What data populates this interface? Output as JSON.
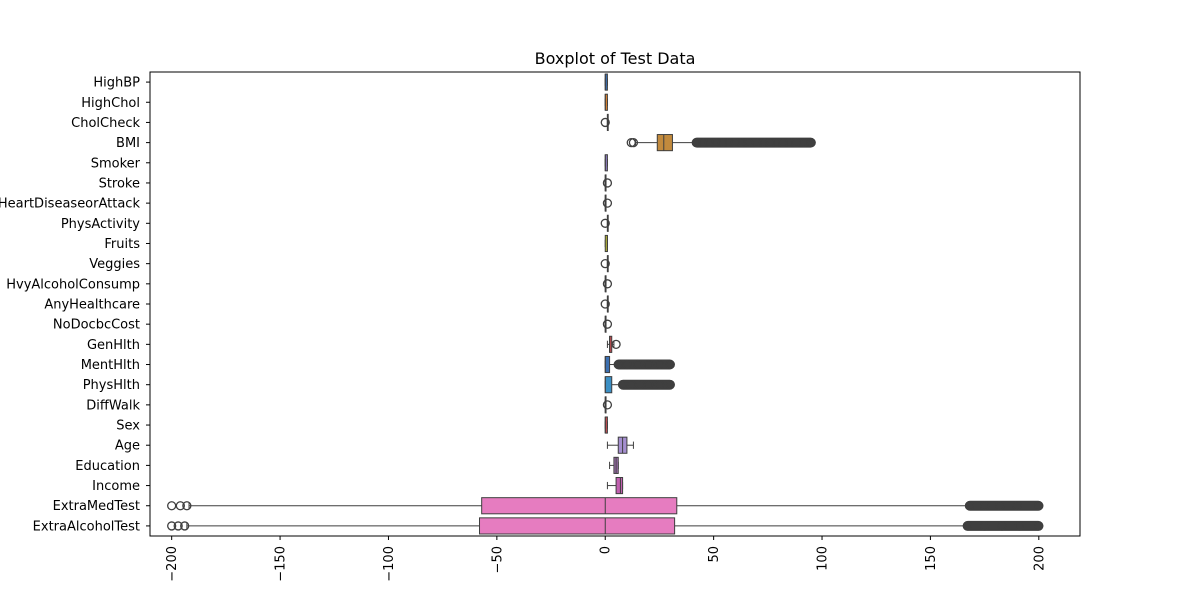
{
  "chart_data": {
    "type": "boxplot",
    "title": "Boxplot of Test Data",
    "orientation": "horizontal",
    "xlim": [
      -210,
      219
    ],
    "xticks": [
      -200,
      -150,
      -100,
      -50,
      0,
      50,
      100,
      150,
      200
    ],
    "xtick_labels": [
      "−200",
      "−150",
      "−100",
      "−50",
      "0",
      "50",
      "100",
      "150",
      "200"
    ],
    "xtick_rotation": 90,
    "grid": false,
    "series": [
      {
        "name": "HighBP",
        "color": "#3b6fb0",
        "min": 0,
        "q1": 0,
        "median": 0,
        "q3": 1,
        "max": 1,
        "outliers": []
      },
      {
        "name": "HighChol",
        "color": "#e3852f",
        "min": 0,
        "q1": 0,
        "median": 0,
        "q3": 1,
        "max": 1,
        "outliers": []
      },
      {
        "name": "CholCheck",
        "color": "#3da13d",
        "min": 1,
        "q1": 1,
        "median": 1,
        "q3": 1,
        "max": 1,
        "outliers": [
          0
        ]
      },
      {
        "name": "BMI",
        "color": "#c28a3d",
        "min": 14,
        "q1": 24,
        "median": 27,
        "q3": 31,
        "max": 41,
        "outliers": [
          12,
          13,
          42,
          45,
          48,
          51,
          54,
          57,
          60,
          63,
          66,
          70,
          73,
          76,
          79,
          82,
          85,
          88,
          92,
          95
        ]
      },
      {
        "name": "Smoker",
        "color": "#8c7bbd",
        "min": 0,
        "q1": 0,
        "median": 0,
        "q3": 1,
        "max": 1,
        "outliers": []
      },
      {
        "name": "Stroke",
        "color": "#8d5a4b",
        "min": 0,
        "q1": 0,
        "median": 0,
        "q3": 0,
        "max": 0,
        "outliers": [
          1
        ]
      },
      {
        "name": "HeartDiseaseorAttack",
        "color": "#d67bc0",
        "min": 0,
        "q1": 0,
        "median": 0,
        "q3": 0,
        "max": 0,
        "outliers": [
          1
        ]
      },
      {
        "name": "PhysActivity",
        "color": "#8c8c8c",
        "min": 1,
        "q1": 1,
        "median": 1,
        "q3": 1,
        "max": 1,
        "outliers": [
          0
        ]
      },
      {
        "name": "Fruits",
        "color": "#b8b83a",
        "min": 0,
        "q1": 0,
        "median": 1,
        "q3": 1,
        "max": 1,
        "outliers": []
      },
      {
        "name": "Veggies",
        "color": "#46b6c9",
        "min": 1,
        "q1": 1,
        "median": 1,
        "q3": 1,
        "max": 1,
        "outliers": [
          0
        ]
      },
      {
        "name": "HvyAlcoholConsump",
        "color": "#3b6fb0",
        "min": 0,
        "q1": 0,
        "median": 0,
        "q3": 0,
        "max": 0,
        "outliers": [
          1
        ]
      },
      {
        "name": "AnyHealthcare",
        "color": "#e3852f",
        "min": 1,
        "q1": 1,
        "median": 1,
        "q3": 1,
        "max": 1,
        "outliers": [
          0
        ]
      },
      {
        "name": "NoDocbcCost",
        "color": "#3da13d",
        "min": 0,
        "q1": 0,
        "median": 0,
        "q3": 0,
        "max": 0,
        "outliers": [
          1
        ]
      },
      {
        "name": "GenHlth",
        "color": "#c44e52",
        "min": 1,
        "q1": 2,
        "median": 2,
        "q3": 3,
        "max": 4,
        "outliers": [
          5
        ]
      },
      {
        "name": "MentHlth",
        "color": "#3b6fb0",
        "min": 0,
        "q1": 0,
        "median": 0,
        "q3": 2,
        "max": 5,
        "outliers": [
          6,
          10,
          15,
          20,
          25,
          30
        ]
      },
      {
        "name": "PhysHlth",
        "color": "#3b8fc4",
        "min": 0,
        "q1": 0,
        "median": 0,
        "q3": 3,
        "max": 7,
        "outliers": [
          8,
          12,
          16,
          20,
          25,
          30
        ]
      },
      {
        "name": "DiffWalk",
        "color": "#3da13d",
        "min": 0,
        "q1": 0,
        "median": 0,
        "q3": 0,
        "max": 0,
        "outliers": [
          1
        ]
      },
      {
        "name": "Sex",
        "color": "#c44e52",
        "min": 0,
        "q1": 0,
        "median": 0,
        "q3": 1,
        "max": 1,
        "outliers": []
      },
      {
        "name": "Age",
        "color": "#a58fd0",
        "min": 1,
        "q1": 6,
        "median": 8,
        "q3": 10,
        "max": 13,
        "outliers": []
      },
      {
        "name": "Education",
        "color": "#a070b0",
        "min": 2,
        "q1": 4,
        "median": 5,
        "q3": 6,
        "max": 6,
        "outliers": []
      },
      {
        "name": "Income",
        "color": "#c25fb0",
        "min": 1,
        "q1": 5,
        "median": 7,
        "q3": 8,
        "max": 8,
        "outliers": []
      },
      {
        "name": "ExtraMedTest",
        "color": "#e67cc0",
        "min": -192,
        "q1": -57,
        "median": 0,
        "q3": 33,
        "max": 167,
        "outliers": [
          -200,
          -196,
          -193,
          168,
          175,
          182,
          190,
          200
        ]
      },
      {
        "name": "ExtraAlcoholTest",
        "color": "#e67cc0",
        "min": -193,
        "q1": -58,
        "median": 0,
        "q3": 32,
        "max": 166,
        "outliers": [
          -200,
          -197,
          -194,
          167,
          175,
          183,
          191,
          200
        ]
      }
    ]
  }
}
